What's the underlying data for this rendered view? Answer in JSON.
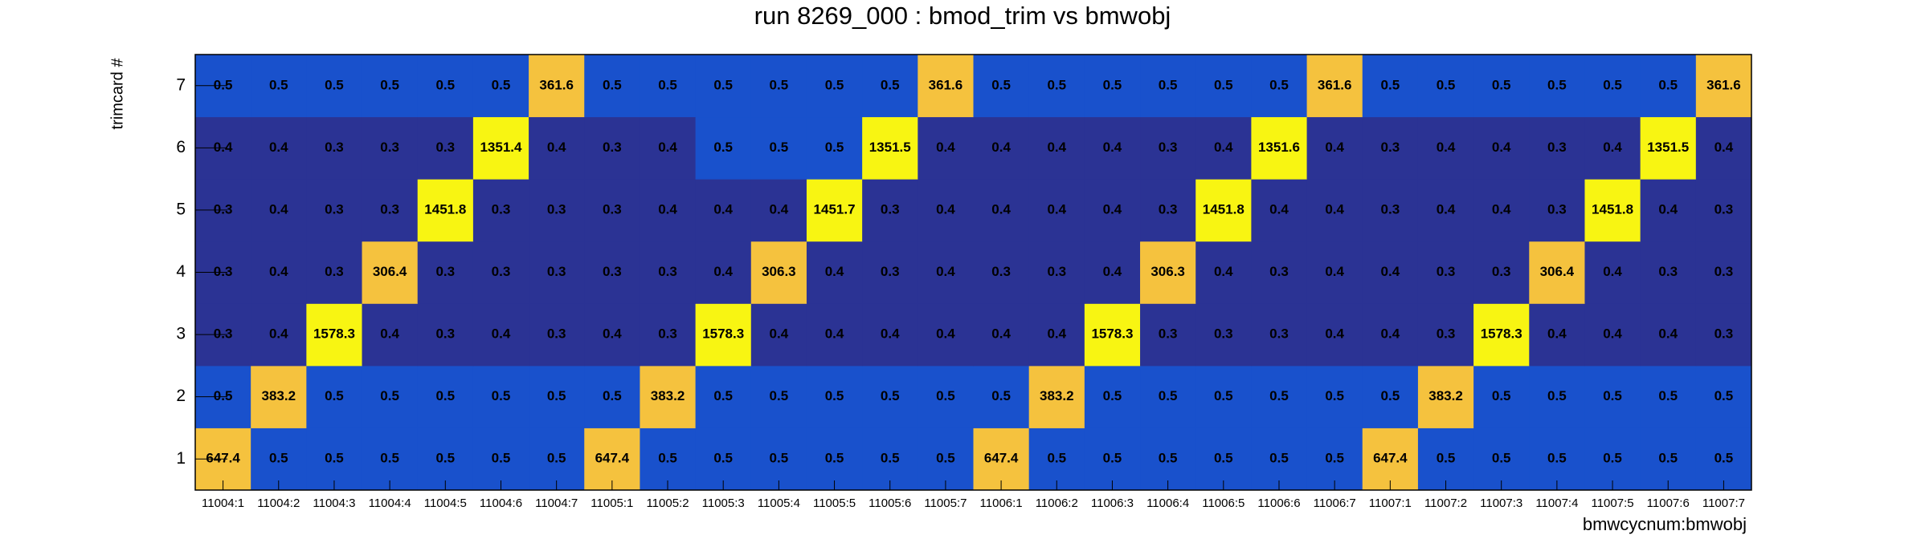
{
  "chart_data": {
    "type": "heatmap",
    "title": "run 8269_000 : bmod_trim vs bmwobj",
    "x_label": "bmwcycnum:bmwobj",
    "y_label": "trimcard #",
    "x_categories": [
      "11004:1",
      "11004:2",
      "11004:3",
      "11004:4",
      "11004:5",
      "11004:6",
      "11004:7",
      "11005:1",
      "11005:2",
      "11005:3",
      "11005:4",
      "11005:5",
      "11005:6",
      "11005:7",
      "11006:1",
      "11006:2",
      "11006:3",
      "11006:4",
      "11006:5",
      "11006:6",
      "11006:7",
      "11007:1",
      "11007:2",
      "11007:3",
      "11007:4",
      "11007:5",
      "11007:6",
      "11007:7"
    ],
    "y_categories": [
      "1",
      "2",
      "3",
      "4",
      "5",
      "6",
      "7"
    ],
    "values": [
      [
        647.4,
        0.5,
        0.5,
        0.5,
        0.5,
        0.5,
        0.5,
        647.4,
        0.5,
        0.5,
        0.5,
        0.5,
        0.5,
        0.5,
        647.4,
        0.5,
        0.5,
        0.5,
        0.5,
        0.5,
        0.5,
        647.4,
        0.5,
        0.5,
        0.5,
        0.5,
        0.5,
        0.5
      ],
      [
        0.5,
        383.2,
        0.5,
        0.5,
        0.5,
        0.5,
        0.5,
        0.5,
        383.2,
        0.5,
        0.5,
        0.5,
        0.5,
        0.5,
        0.5,
        383.2,
        0.5,
        0.5,
        0.5,
        0.5,
        0.5,
        0.5,
        383.2,
        0.5,
        0.5,
        0.5,
        0.5,
        0.5
      ],
      [
        0.3,
        0.4,
        1578.3,
        0.4,
        0.3,
        0.4,
        0.3,
        0.4,
        0.3,
        1578.3,
        0.4,
        0.4,
        0.4,
        0.4,
        0.4,
        0.4,
        1578.3,
        0.3,
        0.3,
        0.3,
        0.4,
        0.4,
        0.3,
        1578.3,
        0.4,
        0.4,
        0.4,
        0.3
      ],
      [
        0.3,
        0.4,
        0.3,
        306.4,
        0.3,
        0.3,
        0.3,
        0.3,
        0.3,
        0.4,
        306.3,
        0.4,
        0.3,
        0.4,
        0.3,
        0.3,
        0.4,
        306.3,
        0.4,
        0.3,
        0.4,
        0.4,
        0.3,
        0.3,
        306.4,
        0.4,
        0.3,
        0.3
      ],
      [
        0.3,
        0.4,
        0.3,
        0.3,
        1451.8,
        0.3,
        0.3,
        0.3,
        0.4,
        0.4,
        0.4,
        1451.7,
        0.3,
        0.4,
        0.4,
        0.4,
        0.4,
        0.3,
        1451.8,
        0.4,
        0.4,
        0.3,
        0.4,
        0.4,
        0.3,
        1451.8,
        0.4,
        0.3
      ],
      [
        0.4,
        0.4,
        0.3,
        0.3,
        0.3,
        1351.4,
        0.4,
        0.3,
        0.4,
        0.5,
        0.5,
        0.5,
        1351.5,
        0.4,
        0.4,
        0.4,
        0.4,
        0.3,
        0.4,
        1351.6,
        0.4,
        0.3,
        0.4,
        0.4,
        0.3,
        0.4,
        1351.5,
        0.4
      ],
      [
        0.5,
        0.5,
        0.5,
        0.5,
        0.5,
        0.5,
        361.6,
        0.5,
        0.5,
        0.5,
        0.5,
        0.5,
        0.5,
        361.6,
        0.5,
        0.5,
        0.5,
        0.5,
        0.5,
        0.5,
        361.6,
        0.5,
        0.5,
        0.5,
        0.5,
        0.5,
        0.5,
        361.6
      ]
    ],
    "color_levels": [
      {
        "from": 0,
        "color": "#2b3394"
      },
      {
        "from": 0.45,
        "color": "#1951cc"
      },
      {
        "from": 300,
        "color": "#f5c23e"
      },
      {
        "from": 1000,
        "color": "#f8f512"
      }
    ]
  }
}
